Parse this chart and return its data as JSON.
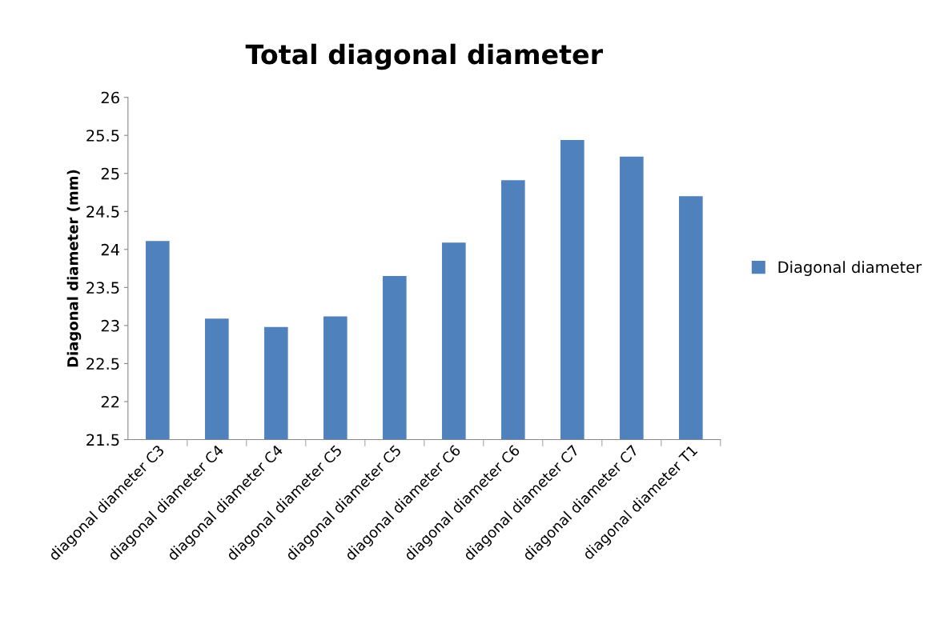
{
  "chart_data": {
    "type": "bar",
    "title": "Total diagonal diameter",
    "ylabel": "Diagonal diameter (mm)",
    "categories": [
      "diagonal diameter C3",
      "diagonal diameter C4",
      "diagonal diameter C4",
      "diagonal diameter C5",
      "diagonal diameter C5",
      "diagonal diameter C6",
      "diagonal diameter C6",
      "diagonal diameter C7",
      "diagonal diameter C7",
      "diagonal diameter T1"
    ],
    "series": [
      {
        "name": "Diagonal diameter",
        "color": "#4f81bd",
        "values": [
          24.11,
          23.09,
          22.98,
          23.12,
          23.65,
          24.09,
          24.91,
          25.44,
          25.22,
          24.7
        ]
      }
    ],
    "ylim": [
      21.5,
      26
    ],
    "yticks": [
      21.5,
      22,
      22.5,
      23,
      23.5,
      24,
      24.5,
      25,
      25.5,
      26
    ],
    "grid": false,
    "legend": "right"
  }
}
